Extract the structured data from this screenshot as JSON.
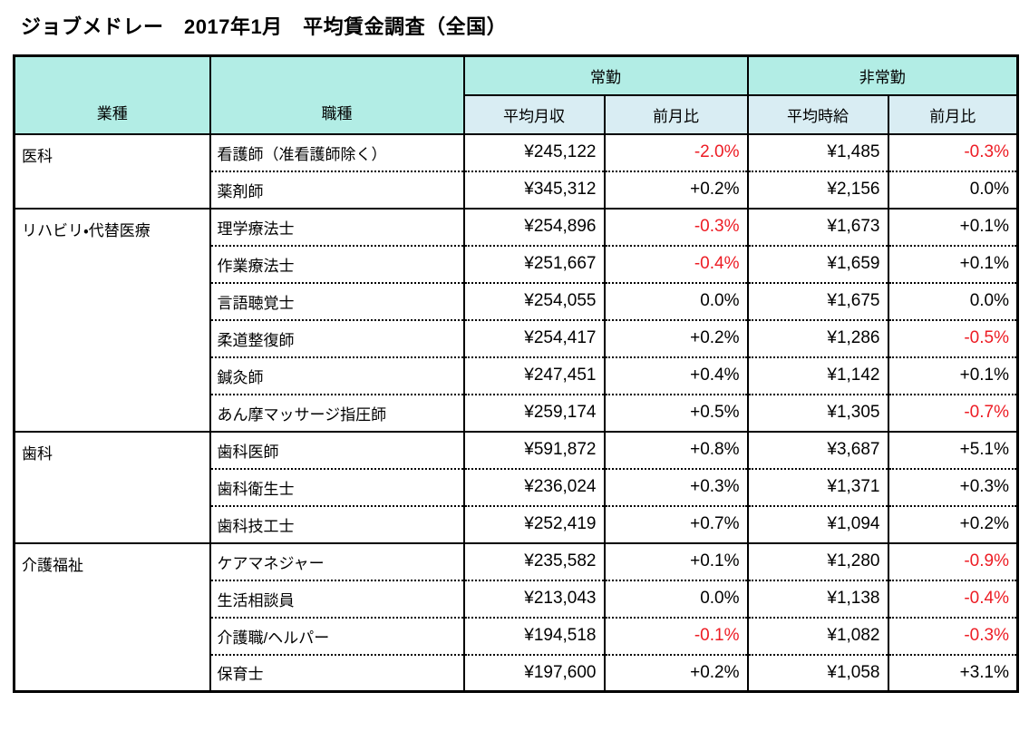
{
  "title": "ジョブメドレー　2017年1月　平均賃金調査（全国）",
  "colors": {
    "header_teal": "#b2ede5",
    "subheader_blue": "#d9edf3",
    "negative_red": "#ed1c24",
    "border_black": "#000000"
  },
  "table": {
    "headers": {
      "industry": "業種",
      "occupation": "職種",
      "fulltime": "常勤",
      "parttime": "非常勤",
      "avg_monthly": "平均月収",
      "mom_fulltime": "前月比",
      "avg_hourly": "平均時給",
      "mom_parttime": "前月比"
    },
    "groups": [
      {
        "industry": "医科",
        "rows": [
          {
            "occupation": "看護師（准看護師除く）",
            "monthly": "¥245,122",
            "monthly_mom": "-2.0%",
            "hourly": "¥1,485",
            "hourly_mom": "-0.3%"
          },
          {
            "occupation": "薬剤師",
            "monthly": "¥345,312",
            "monthly_mom": "+0.2%",
            "hourly": "¥2,156",
            "hourly_mom": "0.0%"
          }
        ]
      },
      {
        "industry": "リハビリ・代替医療",
        "rows": [
          {
            "occupation": "理学療法士",
            "monthly": "¥254,896",
            "monthly_mom": "-0.3%",
            "hourly": "¥1,673",
            "hourly_mom": "+0.1%"
          },
          {
            "occupation": "作業療法士",
            "monthly": "¥251,667",
            "monthly_mom": "-0.4%",
            "hourly": "¥1,659",
            "hourly_mom": "+0.1%"
          },
          {
            "occupation": "言語聴覚士",
            "monthly": "¥254,055",
            "monthly_mom": "0.0%",
            "hourly": "¥1,675",
            "hourly_mom": "0.0%"
          },
          {
            "occupation": "柔道整復師",
            "monthly": "¥254,417",
            "monthly_mom": "+0.2%",
            "hourly": "¥1,286",
            "hourly_mom": "-0.5%"
          },
          {
            "occupation": "鍼灸師",
            "monthly": "¥247,451",
            "monthly_mom": "+0.4%",
            "hourly": "¥1,142",
            "hourly_mom": "+0.1%"
          },
          {
            "occupation": "あん摩マッサージ指圧師",
            "monthly": "¥259,174",
            "monthly_mom": "+0.5%",
            "hourly": "¥1,305",
            "hourly_mom": "-0.7%"
          }
        ]
      },
      {
        "industry": "歯科",
        "rows": [
          {
            "occupation": "歯科医師",
            "monthly": "¥591,872",
            "monthly_mom": "+0.8%",
            "hourly": "¥3,687",
            "hourly_mom": "+5.1%"
          },
          {
            "occupation": "歯科衛生士",
            "monthly": "¥236,024",
            "monthly_mom": "+0.3%",
            "hourly": "¥1,371",
            "hourly_mom": "+0.3%"
          },
          {
            "occupation": "歯科技工士",
            "monthly": "¥252,419",
            "monthly_mom": "+0.7%",
            "hourly": "¥1,094",
            "hourly_mom": "+0.2%"
          }
        ]
      },
      {
        "industry": "介護福祉",
        "rows": [
          {
            "occupation": "ケアマネジャー",
            "monthly": "¥235,582",
            "monthly_mom": "+0.1%",
            "hourly": "¥1,280",
            "hourly_mom": "-0.9%"
          },
          {
            "occupation": "生活相談員",
            "monthly": "¥213,043",
            "monthly_mom": "0.0%",
            "hourly": "¥1,138",
            "hourly_mom": "-0.4%"
          },
          {
            "occupation": "介護職/ヘルパー",
            "monthly": "¥194,518",
            "monthly_mom": "-0.1%",
            "hourly": "¥1,082",
            "hourly_mom": "-0.3%"
          },
          {
            "occupation": "保育士",
            "monthly": "¥197,600",
            "monthly_mom": "+0.2%",
            "hourly": "¥1,058",
            "hourly_mom": "+3.1%"
          }
        ]
      }
    ]
  },
  "chart_data": {
    "type": "table",
    "title": "ジョブメドレー　2017年1月　平均賃金調査（全国）",
    "column_groups": [
      "常勤",
      "非常勤"
    ],
    "columns": [
      "業種",
      "職種",
      "常勤 平均月収",
      "常勤 前月比",
      "非常勤 平均時給",
      "非常勤 前月比"
    ],
    "rows": [
      [
        "医科",
        "看護師（准看護師除く）",
        "¥245,122",
        "-2.0%",
        "¥1,485",
        "-0.3%"
      ],
      [
        "医科",
        "薬剤師",
        "¥345,312",
        "+0.2%",
        "¥2,156",
        "0.0%"
      ],
      [
        "リハビリ・代替医療",
        "理学療法士",
        "¥254,896",
        "-0.3%",
        "¥1,673",
        "+0.1%"
      ],
      [
        "リハビリ・代替医療",
        "作業療法士",
        "¥251,667",
        "-0.4%",
        "¥1,659",
        "+0.1%"
      ],
      [
        "リハビリ・代替医療",
        "言語聴覚士",
        "¥254,055",
        "0.0%",
        "¥1,675",
        "0.0%"
      ],
      [
        "リハビリ・代替医療",
        "柔道整復師",
        "¥254,417",
        "+0.2%",
        "¥1,286",
        "-0.5%"
      ],
      [
        "リハビリ・代替医療",
        "鍼灸師",
        "¥247,451",
        "+0.4%",
        "¥1,142",
        "+0.1%"
      ],
      [
        "リハビリ・代替医療",
        "あん摩マッサージ指圧師",
        "¥259,174",
        "+0.5%",
        "¥1,305",
        "-0.7%"
      ],
      [
        "歯科",
        "歯科医師",
        "¥591,872",
        "+0.8%",
        "¥3,687",
        "+5.1%"
      ],
      [
        "歯科",
        "歯科衛生士",
        "¥236,024",
        "+0.3%",
        "¥1,371",
        "+0.3%"
      ],
      [
        "歯科",
        "歯科技工士",
        "¥252,419",
        "+0.7%",
        "¥1,094",
        "+0.2%"
      ],
      [
        "介護福祉",
        "ケアマネジャー",
        "¥235,582",
        "+0.1%",
        "¥1,280",
        "-0.9%"
      ],
      [
        "介護福祉",
        "生活相談員",
        "¥213,043",
        "0.0%",
        "¥1,138",
        "-0.4%"
      ],
      [
        "介護福祉",
        "介護職/ヘルパー",
        "¥194,518",
        "-0.1%",
        "¥1,082",
        "-0.3%"
      ],
      [
        "介護福祉",
        "保育士",
        "¥197,600",
        "+0.2%",
        "¥1,058",
        "+3.1%"
      ]
    ],
    "style_note": "negative percentages rendered in red"
  }
}
